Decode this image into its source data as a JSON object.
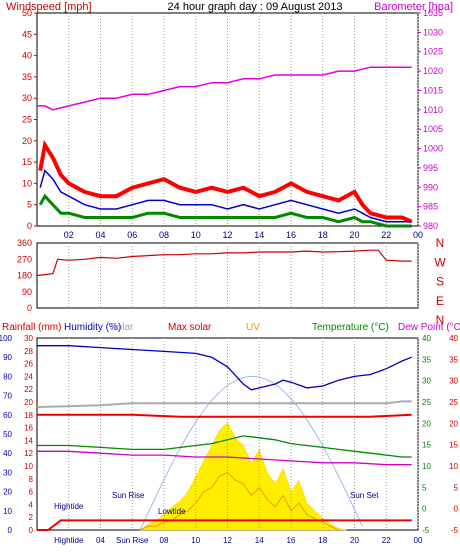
{
  "chart_data": [
    {
      "type": "line",
      "title": "24 hour graph day : 09 August 2013",
      "left_label": "Windspeed [mph]",
      "right_label": "Barometer [hpa]",
      "x_ticks": [
        "02",
        "04",
        "06",
        "08",
        "10",
        "12",
        "14",
        "16",
        "18",
        "20",
        "22",
        "00"
      ],
      "left_ticks": [
        "0",
        "5",
        "10",
        "15",
        "20",
        "25",
        "30",
        "35",
        "40",
        "45",
        "50"
      ],
      "right_ticks": [
        "980",
        "985",
        "990",
        "995",
        "1000",
        "1005",
        "1010",
        "1015",
        "1020",
        "1025",
        "1030",
        "1035"
      ],
      "xlim": [
        0,
        24
      ],
      "ylim": [
        0,
        50
      ],
      "y2lim": [
        980,
        1035
      ],
      "colors": {
        "gust": "#ff0000",
        "average": "#0000cc",
        "wind": "#008800",
        "barometer": "#e000e0"
      },
      "series": [
        {
          "key": "gust",
          "x": [
            0.2,
            0.5,
            1,
            1.5,
            2,
            3,
            4,
            5,
            6,
            7,
            8,
            9,
            10,
            11,
            12,
            13,
            14,
            15,
            16,
            17,
            18,
            19,
            20,
            20.5,
            21,
            22,
            23,
            23.6
          ],
          "values": [
            13,
            19,
            16,
            12,
            10,
            8,
            7,
            7,
            9,
            10,
            11,
            9,
            8,
            9,
            8,
            9,
            7,
            8,
            10,
            8,
            7,
            6,
            8,
            5,
            3,
            2,
            2,
            1
          ]
        },
        {
          "key": "average",
          "x": [
            0.2,
            0.5,
            1,
            1.5,
            2,
            3,
            4,
            5,
            6,
            7,
            8,
            9,
            10,
            11,
            12,
            13,
            14,
            15,
            16,
            17,
            18,
            19,
            20,
            20.5,
            21,
            22,
            23,
            23.6
          ],
          "values": [
            9,
            13,
            11,
            8,
            7,
            5,
            4,
            4,
            5,
            6,
            6,
            5,
            5,
            5,
            4,
            5,
            4,
            5,
            6,
            5,
            4,
            3,
            4,
            3,
            2,
            1,
            1,
            1
          ]
        },
        {
          "key": "wind",
          "x": [
            0.2,
            0.5,
            1,
            1.5,
            2,
            3,
            4,
            5,
            6,
            7,
            8,
            9,
            10,
            11,
            12,
            13,
            14,
            15,
            16,
            17,
            18,
            19,
            20,
            20.5,
            21,
            22,
            23,
            23.6
          ],
          "values": [
            5,
            7,
            5,
            3,
            3,
            2,
            2,
            2,
            2,
            3,
            3,
            2,
            2,
            2,
            2,
            2,
            2,
            2,
            3,
            2,
            2,
            1,
            2,
            1,
            1,
            0,
            0,
            0
          ]
        },
        {
          "key": "barometer",
          "x": [
            0,
            0.5,
            1,
            2,
            3,
            4,
            5,
            6,
            7,
            8,
            9,
            10,
            11,
            12,
            13,
            14,
            15,
            16,
            17,
            18,
            19,
            20,
            21,
            22,
            23,
            23.6
          ],
          "values": [
            1011,
            1011,
            1010,
            1011,
            1012,
            1013,
            1013,
            1014,
            1014,
            1015,
            1016,
            1016,
            1017,
            1017,
            1018,
            1018,
            1019,
            1019,
            1019,
            1019,
            1020,
            1020,
            1021,
            1021,
            1021,
            1021
          ]
        }
      ]
    },
    {
      "type": "line",
      "left_ticks": [
        "0",
        "90",
        "180",
        "270",
        "360"
      ],
      "right_ticks": [
        "N",
        "W",
        "S",
        "E",
        "N"
      ],
      "ylim": [
        0,
        360
      ],
      "series": [
        {
          "key": "direction",
          "x": [
            0,
            1,
            1.3,
            2,
            3,
            4,
            5,
            6,
            7,
            8,
            9,
            10,
            11,
            12,
            13,
            14,
            15,
            16,
            17,
            18,
            19,
            20,
            21,
            21.5,
            22,
            23,
            23.6
          ],
          "values": [
            180,
            190,
            270,
            265,
            270,
            280,
            275,
            285,
            290,
            295,
            295,
            300,
            300,
            305,
            305,
            310,
            310,
            310,
            315,
            310,
            312,
            315,
            320,
            320,
            265,
            260,
            260
          ]
        }
      ]
    },
    {
      "type": "line",
      "legend": [
        "Rainfall (mm)",
        "Humidity (%)",
        "Solar",
        "Max solar",
        "UV",
        "Temperature (°C)",
        "Dew Point (°C)"
      ],
      "left_ticks_a": [
        "0",
        "10",
        "20",
        "30",
        "40",
        "50",
        "60",
        "70",
        "80",
        "90",
        "100"
      ],
      "left_ticks_b": [
        "0",
        "2",
        "4",
        "6",
        "8",
        "10",
        "12",
        "14",
        "16",
        "18",
        "20",
        "22",
        "24",
        "26",
        "28",
        "30"
      ],
      "right_ticks_a": [
        "-5",
        "0",
        "5",
        "10",
        "15",
        "20",
        "25",
        "30",
        "35",
        "40"
      ],
      "right_ticks_b": [
        "40",
        "35",
        "30",
        "25",
        "20",
        "15",
        "10",
        "5",
        "0",
        "-5"
      ],
      "annotations": [
        "Hightide",
        "Sun Rise",
        "Lowtide",
        "Sun Set"
      ],
      "x_ticks": [
        "Hightide",
        "04",
        "Sun Rise",
        "08",
        "10",
        "12",
        "14",
        "16",
        "18",
        "20",
        "22",
        "00"
      ],
      "ylim": [
        0,
        100
      ],
      "series": [
        {
          "key": "humidity",
          "x": [
            0,
            2,
            4,
            6,
            8,
            10,
            11,
            12,
            13,
            13.5,
            14,
            15,
            15.5,
            16,
            17,
            18,
            19,
            20,
            21,
            22,
            23,
            23.6
          ],
          "values": [
            96,
            96,
            95,
            94,
            93,
            92,
            90,
            85,
            76,
            73,
            74,
            76,
            78,
            77,
            74,
            75,
            78,
            80,
            81,
            84,
            88,
            90
          ]
        },
        {
          "key": "solar",
          "x": [
            0,
            4,
            6,
            8,
            10,
            12,
            14,
            16,
            18,
            20,
            22,
            23,
            23.6
          ],
          "values": [
            64,
            65,
            66,
            66,
            66,
            66,
            66,
            66,
            66,
            66,
            66,
            67,
            67
          ]
        },
        {
          "key": "max_solar",
          "x": [
            0,
            3,
            6,
            9,
            12,
            15,
            18,
            21,
            23.6
          ],
          "values": [
            60,
            60,
            60,
            59,
            59,
            59,
            59,
            59,
            60
          ]
        },
        {
          "key": "temperature",
          "x": [
            0,
            2,
            4,
            6,
            8,
            10,
            11,
            12,
            13,
            14,
            15,
            16,
            17,
            18,
            19,
            20,
            21,
            22,
            23,
            23.6
          ],
          "values": [
            44,
            44,
            43,
            42,
            42,
            44,
            45,
            47,
            49,
            48,
            47,
            45,
            44,
            43,
            42,
            41,
            40,
            39,
            38,
            38
          ]
        },
        {
          "key": "dewpoint",
          "x": [
            0,
            2,
            4,
            6,
            8,
            10,
            12,
            14,
            16,
            18,
            20,
            22,
            23.6
          ],
          "values": [
            41,
            41,
            40,
            39,
            39,
            38,
            38,
            37,
            36,
            35,
            35,
            34,
            34
          ]
        },
        {
          "key": "rainfall",
          "x": [
            0,
            0.7,
            1.5,
            2,
            4,
            6,
            8,
            10,
            12,
            14,
            16,
            18,
            20,
            22,
            23,
            23.6
          ],
          "values": [
            0,
            0,
            5,
            5,
            5,
            5,
            5,
            5,
            5,
            5,
            5,
            5,
            5,
            5,
            5,
            5
          ]
        },
        {
          "key": "uv",
          "x": [
            6.5,
            7,
            7.5,
            8,
            8.5,
            9,
            9.5,
            10,
            10.5,
            11,
            11.5,
            12,
            12.5,
            13,
            13.5,
            14,
            14.5,
            15,
            15.5,
            16,
            16.5,
            17,
            17.5,
            18,
            18.5,
            19
          ],
          "values": [
            0,
            2,
            2,
            4,
            5,
            8,
            10,
            14,
            20,
            22,
            28,
            30,
            26,
            24,
            18,
            22,
            16,
            12,
            18,
            10,
            14,
            8,
            6,
            4,
            2,
            0
          ]
        },
        {
          "key": "solar_fill",
          "x": [
            6.5,
            7,
            7.5,
            8,
            8.5,
            9,
            9.5,
            10,
            10.5,
            11,
            11.5,
            12,
            12.5,
            13,
            13.5,
            14,
            14.5,
            15,
            15.5,
            16,
            16.5,
            17,
            17.5,
            18,
            18.5,
            19,
            19.5
          ],
          "values": [
            0,
            3,
            5,
            8,
            12,
            15,
            20,
            28,
            36,
            44,
            52,
            56,
            48,
            44,
            35,
            42,
            30,
            24,
            32,
            20,
            26,
            14,
            10,
            6,
            3,
            1,
            0
          ]
        }
      ]
    }
  ]
}
